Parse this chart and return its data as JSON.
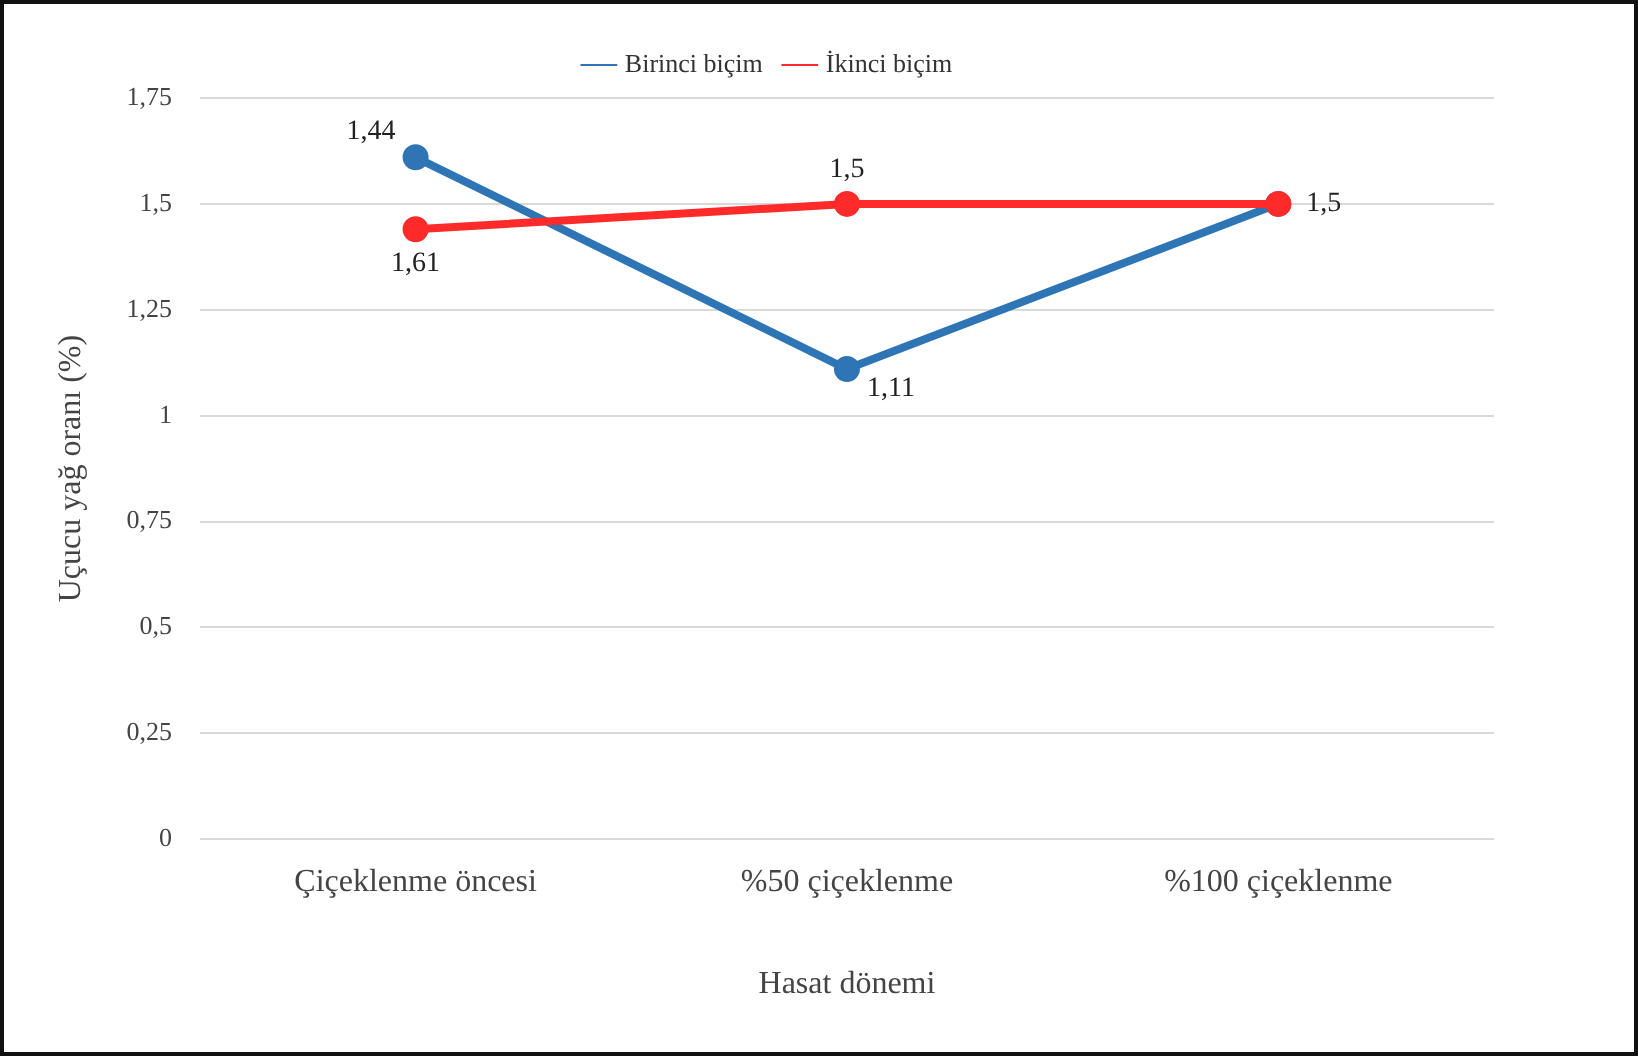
{
  "chart_data": {
    "type": "line",
    "xlabel": "Hasat dönemi",
    "ylabel": "Uçucu yağ oranı (%)",
    "categories": [
      "Çiçeklenme öncesi",
      "%50 çiçeklenme",
      "%100 çiçeklenme"
    ],
    "series": [
      {
        "name": "Birinci biçim",
        "color": "#2e75b6",
        "values": [
          1.61,
          1.11,
          1.5
        ]
      },
      {
        "name": "İkinci biçim",
        "color": "#ff2a2a",
        "values": [
          1.44,
          1.5,
          1.5
        ]
      }
    ],
    "ylim": [
      0,
      1.75
    ],
    "yticks": [
      {
        "value": 0,
        "label": "0"
      },
      {
        "value": 0.25,
        "label": "0,25"
      },
      {
        "value": 0.5,
        "label": "0,5"
      },
      {
        "value": 0.75,
        "label": "0,75"
      },
      {
        "value": 1,
        "label": "1"
      },
      {
        "value": 1.25,
        "label": "1,25"
      },
      {
        "value": 1.5,
        "label": "1,5"
      },
      {
        "value": 1.75,
        "label": "1,75"
      }
    ],
    "grid": "y",
    "legend": "top",
    "marker": "circle",
    "line_style": "solid",
    "annotations": [
      {
        "text": "1,44",
        "x": "Çiçeklenme öncesi",
        "y": 1.61
      },
      {
        "text": "1,61",
        "x": "Çiçeklenme öncesi",
        "y": 1.44
      },
      {
        "text": "1,5",
        "x": "%50 çiçeklenme",
        "y": 1.5
      },
      {
        "text": "1,11",
        "x": "%50 çiçeklenme",
        "y": 1.11
      },
      {
        "text": "1,5",
        "x": "%100 çiçeklenme",
        "y": 1.5
      }
    ]
  }
}
